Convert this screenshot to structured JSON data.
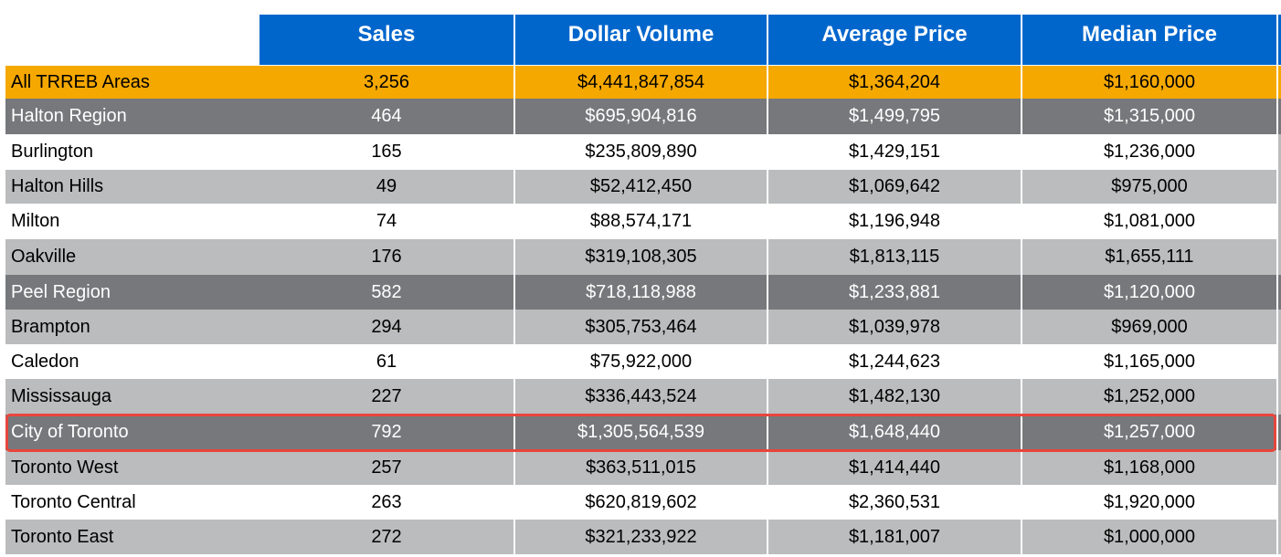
{
  "chart_data": {
    "type": "table",
    "columns": [
      "",
      "Sales",
      "Dollar Volume",
      "Average Price",
      "Median Price"
    ],
    "rows": [
      {
        "area": "All TRREB Areas",
        "sales": "3,256",
        "dollar_volume": "$4,441,847,854",
        "average_price": "$1,364,204",
        "median_price": "$1,160,000",
        "style": "orange"
      },
      {
        "area": "Halton Region",
        "sales": "464",
        "dollar_volume": "$695,904,816",
        "average_price": "$1,499,795",
        "median_price": "$1,315,000",
        "style": "dark"
      },
      {
        "area": "Burlington",
        "sales": "165",
        "dollar_volume": "$235,809,890",
        "average_price": "$1,429,151",
        "median_price": "$1,236,000",
        "style": "white"
      },
      {
        "area": "Halton Hills",
        "sales": "49",
        "dollar_volume": "$52,412,450",
        "average_price": "$1,069,642",
        "median_price": "$975,000",
        "style": "light"
      },
      {
        "area": "Milton",
        "sales": "74",
        "dollar_volume": "$88,574,171",
        "average_price": "$1,196,948",
        "median_price": "$1,081,000",
        "style": "white"
      },
      {
        "area": "Oakville",
        "sales": "176",
        "dollar_volume": "$319,108,305",
        "average_price": "$1,813,115",
        "median_price": "$1,655,111",
        "style": "light"
      },
      {
        "area": "Peel Region",
        "sales": "582",
        "dollar_volume": "$718,118,988",
        "average_price": "$1,233,881",
        "median_price": "$1,120,000",
        "style": "dark"
      },
      {
        "area": "Brampton",
        "sales": "294",
        "dollar_volume": "$305,753,464",
        "average_price": "$1,039,978",
        "median_price": "$969,000",
        "style": "light"
      },
      {
        "area": "Caledon",
        "sales": "61",
        "dollar_volume": "$75,922,000",
        "average_price": "$1,244,623",
        "median_price": "$1,165,000",
        "style": "white"
      },
      {
        "area": "Mississauga",
        "sales": "227",
        "dollar_volume": "$336,443,524",
        "average_price": "$1,482,130",
        "median_price": "$1,252,000",
        "style": "light"
      },
      {
        "area": "City of Toronto",
        "sales": "792",
        "dollar_volume": "$1,305,564,539",
        "average_price": "$1,648,440",
        "median_price": "$1,257,000",
        "style": "dark",
        "highlighted": true
      },
      {
        "area": "Toronto West",
        "sales": "257",
        "dollar_volume": "$363,511,015",
        "average_price": "$1,414,440",
        "median_price": "$1,168,000",
        "style": "light"
      },
      {
        "area": "Toronto Central",
        "sales": "263",
        "dollar_volume": "$620,819,602",
        "average_price": "$2,360,531",
        "median_price": "$1,920,000",
        "style": "white"
      },
      {
        "area": "Toronto East",
        "sales": "272",
        "dollar_volume": "$321,233,922",
        "average_price": "$1,181,007",
        "median_price": "$1,000,000",
        "style": "light"
      }
    ]
  },
  "colors": {
    "header_blue": "#0066cc",
    "total_orange": "#f5a800",
    "region_dark_gray": "#76787b",
    "municipality_light_gray": "#bbbcbd",
    "highlight_red": "#e8453c"
  }
}
